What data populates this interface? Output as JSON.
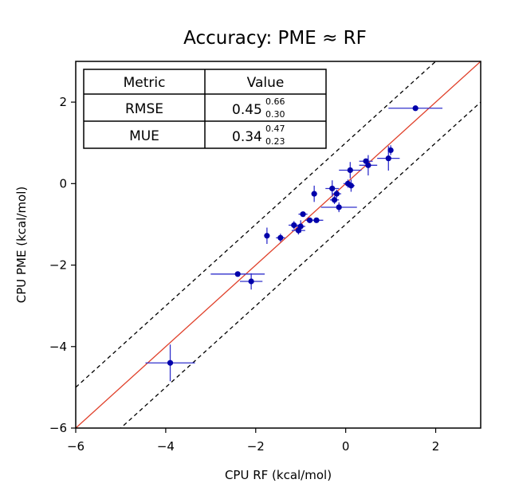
{
  "chart_data": {
    "type": "scatter",
    "title": "Accuracy: PME ≈ RF",
    "xlabel": "CPU RF (kcal/mol)",
    "ylabel": "CPU PME (kcal/mol)",
    "xlim": [
      -6,
      3
    ],
    "ylim": [
      -6,
      3
    ],
    "xticks": [
      -6,
      -4,
      -2,
      0,
      2
    ],
    "yticks": [
      -6,
      -4,
      -2,
      0,
      2
    ],
    "tick_labels": {
      "x": [
        "−6",
        "−4",
        "−2",
        "0",
        "2"
      ],
      "y": [
        "−6",
        "−4",
        "−2",
        "0",
        "2"
      ]
    },
    "grid": false,
    "colors": {
      "points": "#0000aa",
      "errorbars": "#3030cc",
      "identity_line": "#e0402a",
      "band_lines": "#000000"
    },
    "reference_lines": {
      "identity": {
        "slope": 1,
        "intercept": 0,
        "style": "solid",
        "color": "#e0402a"
      },
      "bands": [
        {
          "slope": 1,
          "intercept": 1,
          "style": "dashed"
        },
        {
          "slope": 1,
          "intercept": -1,
          "style": "dashed"
        }
      ]
    },
    "points": [
      {
        "x": -3.9,
        "y": -4.4,
        "xerr": 0.55,
        "yerr": 0.45
      },
      {
        "x": -2.4,
        "y": -2.22,
        "xerr": 0.6,
        "yerr": 0.0
      },
      {
        "x": -2.1,
        "y": -2.4,
        "xerr": 0.25,
        "yerr": 0.2
      },
      {
        "x": -1.75,
        "y": -1.28,
        "xerr": 0.0,
        "yerr": 0.2
      },
      {
        "x": -1.45,
        "y": -1.33,
        "xerr": 0.1,
        "yerr": 0.1
      },
      {
        "x": -1.15,
        "y": -1.02,
        "xerr": 0.12,
        "yerr": 0.1
      },
      {
        "x": -1.05,
        "y": -1.15,
        "xerr": 0.15,
        "yerr": 0.1
      },
      {
        "x": -1.0,
        "y": -1.05,
        "xerr": 0.1,
        "yerr": 0.15
      },
      {
        "x": -0.95,
        "y": -0.75,
        "xerr": 0.1,
        "yerr": 0.05
      },
      {
        "x": -0.8,
        "y": -0.9,
        "xerr": 0.1,
        "yerr": 0.0
      },
      {
        "x": -0.7,
        "y": -0.25,
        "xerr": 0.0,
        "yerr": 0.2
      },
      {
        "x": -0.65,
        "y": -0.9,
        "xerr": 0.15,
        "yerr": 0.0
      },
      {
        "x": -0.3,
        "y": -0.12,
        "xerr": 0.15,
        "yerr": 0.2
      },
      {
        "x": -0.25,
        "y": -0.4,
        "xerr": 0.1,
        "yerr": 0.1
      },
      {
        "x": -0.2,
        "y": -0.25,
        "xerr": 0.1,
        "yerr": 0.1
      },
      {
        "x": -0.15,
        "y": -0.58,
        "xerr": 0.4,
        "yerr": 0.12
      },
      {
        "x": 0.05,
        "y": 0.0,
        "xerr": 0.1,
        "yerr": 0.1
      },
      {
        "x": 0.1,
        "y": 0.33,
        "xerr": 0.25,
        "yerr": 0.2
      },
      {
        "x": 0.12,
        "y": -0.05,
        "xerr": 0.08,
        "yerr": 0.15
      },
      {
        "x": 0.45,
        "y": 0.55,
        "xerr": 0.15,
        "yerr": 0.05
      },
      {
        "x": 0.5,
        "y": 0.45,
        "xerr": 0.2,
        "yerr": 0.25
      },
      {
        "x": 0.95,
        "y": 0.62,
        "xerr": 0.25,
        "yerr": 0.3
      },
      {
        "x": 1.0,
        "y": 0.82,
        "xerr": 0.05,
        "yerr": 0.12
      },
      {
        "x": 1.55,
        "y": 1.85,
        "xerr": 0.6,
        "yerr": 0.0
      }
    ],
    "table": {
      "headers": [
        "Metric",
        "Value"
      ],
      "rows": [
        {
          "metric": "RMSE",
          "value": "0.45",
          "upper": "0.66",
          "lower": "0.30"
        },
        {
          "metric": "MUE",
          "value": "0.34",
          "upper": "0.47",
          "lower": "0.23"
        }
      ]
    }
  }
}
